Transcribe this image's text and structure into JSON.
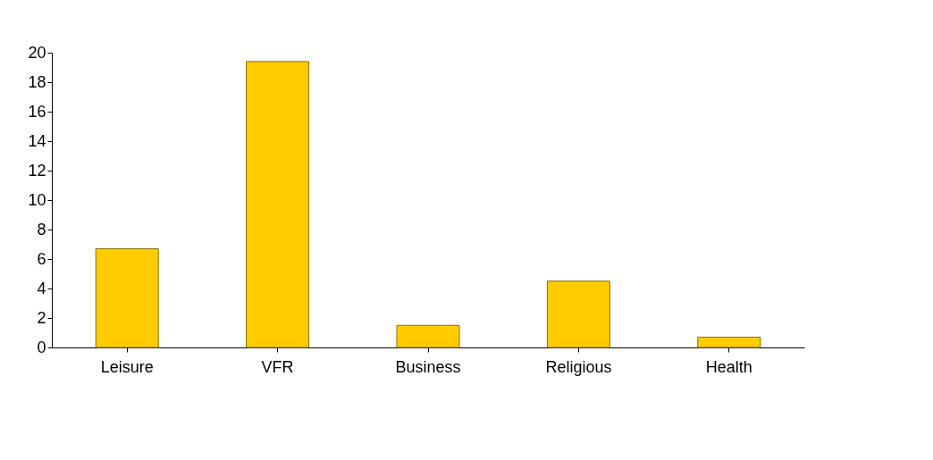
{
  "chart_data": {
    "type": "bar",
    "categories": [
      "Leisure",
      "VFR",
      "Business",
      "Religious",
      "Health"
    ],
    "values": [
      6.7,
      19.4,
      1.5,
      4.5,
      0.7
    ],
    "color": "#ffcc00",
    "ylim": [
      0,
      20
    ],
    "yticks": [
      0,
      2,
      4,
      6,
      8,
      10,
      12,
      14,
      16,
      18,
      20
    ],
    "grid": false
  }
}
